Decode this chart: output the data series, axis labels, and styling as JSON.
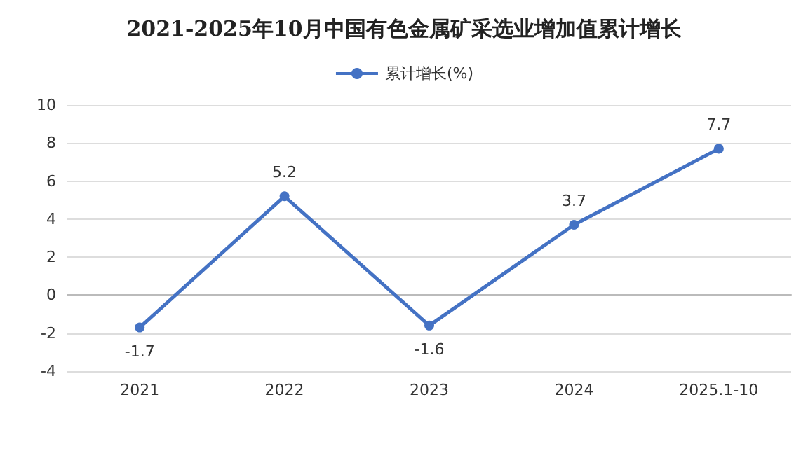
{
  "chart_data": {
    "type": "line",
    "title": "2021-2025年10月中国有色金属矿采选业增加值累计增长",
    "categories": [
      "2021",
      "2022",
      "2023",
      "2024",
      "2025.1-10"
    ],
    "series": [
      {
        "name": "累计增长(%)",
        "color": "#4472c4",
        "values": [
          -1.7,
          5.2,
          -1.6,
          3.7,
          7.7
        ]
      }
    ],
    "ylim": [
      -4,
      10
    ],
    "yticks": [
      -4,
      -2,
      0,
      2,
      4,
      6,
      8,
      10
    ],
    "grid": "y",
    "legend": "top",
    "marker": "circle",
    "line_style": "solid",
    "data_labels": true
  }
}
